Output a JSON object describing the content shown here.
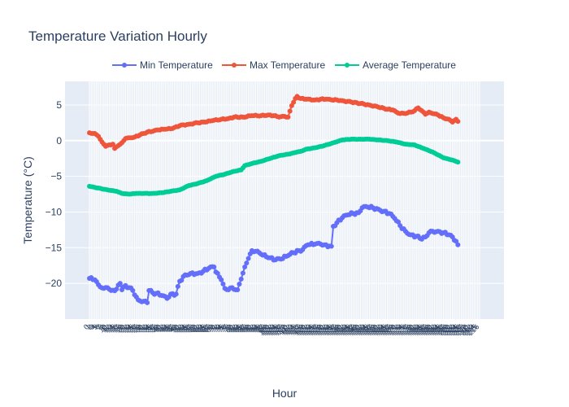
{
  "chart_data": {
    "type": "line",
    "title": "Temperature Variation Hourly",
    "xlabel": "Hour",
    "ylabel": "Temperature (°C)",
    "x_start_label": "0",
    "x_count": 217,
    "ylim": [
      -25,
      8.3
    ],
    "yticks": [
      5,
      0,
      -5,
      -10,
      -15,
      -20
    ],
    "grid": true,
    "legend_position": "top",
    "plot_bg": "#e5ecf6",
    "series": [
      {
        "name": "Min Temperature",
        "color": "#636efa",
        "anchors": [
          [
            0,
            -19.3
          ],
          [
            3,
            -19.5
          ],
          [
            5,
            -20.2
          ],
          [
            8,
            -20.7
          ],
          [
            10,
            -20.6
          ],
          [
            12,
            -21.0
          ],
          [
            15,
            -20.8
          ],
          [
            17,
            -20.0
          ],
          [
            18,
            -20.9
          ],
          [
            20,
            -20.3
          ],
          [
            22,
            -20.6
          ],
          [
            24,
            -21.0
          ],
          [
            25,
            -21.6
          ],
          [
            27,
            -22.3
          ],
          [
            30,
            -22.5
          ],
          [
            32,
            -22.7
          ],
          [
            33,
            -21.0
          ],
          [
            35,
            -21.3
          ],
          [
            37,
            -21.4
          ],
          [
            40,
            -21.7
          ],
          [
            43,
            -22.1
          ],
          [
            45,
            -21.5
          ],
          [
            48,
            -21.5
          ],
          [
            50,
            -19.7
          ],
          [
            53,
            -18.8
          ],
          [
            56,
            -18.6
          ],
          [
            60,
            -18.6
          ],
          [
            63,
            -18.3
          ],
          [
            66,
            -17.9
          ],
          [
            69,
            -17.7
          ],
          [
            70,
            -18.4
          ],
          [
            73,
            -19.5
          ],
          [
            75,
            -20.7
          ],
          [
            77,
            -20.9
          ],
          [
            79,
            -20.6
          ],
          [
            82,
            -20.9
          ],
          [
            84,
            -19.4
          ],
          [
            86,
            -17.7
          ],
          [
            88,
            -16.5
          ],
          [
            90,
            -15.4
          ],
          [
            92,
            -15.5
          ],
          [
            95,
            -15.9
          ],
          [
            99,
            -16.4
          ],
          [
            103,
            -16.7
          ],
          [
            106,
            -16.6
          ],
          [
            110,
            -16.1
          ],
          [
            113,
            -15.7
          ],
          [
            116,
            -15.4
          ],
          [
            117,
            -15.5
          ],
          [
            119,
            -14.9
          ],
          [
            121,
            -14.6
          ],
          [
            125,
            -14.5
          ],
          [
            128,
            -14.5
          ],
          [
            130,
            -14.6
          ],
          [
            134,
            -14.8
          ],
          [
            135,
            -12.0
          ],
          [
            137,
            -11.5
          ],
          [
            140,
            -10.8
          ],
          [
            143,
            -10.4
          ],
          [
            146,
            -10.2
          ],
          [
            149,
            -10.1
          ],
          [
            151,
            -9.4
          ],
          [
            154,
            -9.3
          ],
          [
            157,
            -9.4
          ],
          [
            160,
            -9.6
          ],
          [
            163,
            -9.9
          ],
          [
            166,
            -10.2
          ],
          [
            169,
            -10.9
          ],
          [
            172,
            -11.9
          ],
          [
            175,
            -12.7
          ],
          [
            178,
            -13.2
          ],
          [
            181,
            -13.4
          ],
          [
            183,
            -13.7
          ],
          [
            186,
            -13.5
          ],
          [
            188,
            -12.9
          ],
          [
            190,
            -12.7
          ],
          [
            193,
            -12.7
          ],
          [
            196,
            -12.9
          ],
          [
            199,
            -13.2
          ],
          [
            201,
            -13.5
          ],
          [
            203,
            -14.1
          ],
          [
            204,
            -14.6
          ]
        ]
      },
      {
        "name": "Max Temperature",
        "color": "#ef553b",
        "anchors": [
          [
            0,
            1.1
          ],
          [
            3,
            1.0
          ],
          [
            5,
            0.6
          ],
          [
            7,
            -0.2
          ],
          [
            9,
            -0.8
          ],
          [
            11,
            -0.6
          ],
          [
            13,
            -0.5
          ],
          [
            14,
            -1.1
          ],
          [
            16,
            -0.7
          ],
          [
            18,
            -0.3
          ],
          [
            20,
            0.3
          ],
          [
            22,
            0.4
          ],
          [
            25,
            0.5
          ],
          [
            28,
            0.8
          ],
          [
            32,
            1.2
          ],
          [
            35,
            1.3
          ],
          [
            38,
            1.5
          ],
          [
            42,
            1.6
          ],
          [
            46,
            1.7
          ],
          [
            50,
            2.1
          ],
          [
            55,
            2.3
          ],
          [
            60,
            2.5
          ],
          [
            64,
            2.6
          ],
          [
            68,
            2.8
          ],
          [
            73,
            3.0
          ],
          [
            77,
            3.1
          ],
          [
            80,
            3.3
          ],
          [
            85,
            3.3
          ],
          [
            90,
            3.5
          ],
          [
            95,
            3.5
          ],
          [
            99,
            3.6
          ],
          [
            102,
            3.5
          ],
          [
            105,
            3.3
          ],
          [
            108,
            3.4
          ],
          [
            110,
            3.3
          ],
          [
            112,
            4.9
          ],
          [
            114,
            5.9
          ],
          [
            115,
            6.2
          ],
          [
            117,
            5.9
          ],
          [
            120,
            5.8
          ],
          [
            125,
            5.7
          ],
          [
            128,
            5.8
          ],
          [
            131,
            5.8
          ],
          [
            134,
            5.7
          ],
          [
            137,
            5.7
          ],
          [
            140,
            5.6
          ],
          [
            145,
            5.4
          ],
          [
            150,
            5.2
          ],
          [
            155,
            5.0
          ],
          [
            160,
            4.7
          ],
          [
            165,
            4.4
          ],
          [
            168,
            4.3
          ],
          [
            170,
            4.0
          ],
          [
            172,
            3.8
          ],
          [
            175,
            3.8
          ],
          [
            178,
            4.0
          ],
          [
            180,
            4.2
          ],
          [
            182,
            4.6
          ],
          [
            184,
            4.2
          ],
          [
            186,
            3.7
          ],
          [
            188,
            4.0
          ],
          [
            190,
            3.8
          ],
          [
            193,
            3.6
          ],
          [
            196,
            3.2
          ],
          [
            199,
            3.0
          ],
          [
            201,
            2.6
          ],
          [
            203,
            3.0
          ],
          [
            204,
            2.7
          ]
        ]
      },
      {
        "name": "Average Temperature",
        "color": "#00cc96",
        "anchors": [
          [
            0,
            -6.4
          ],
          [
            10,
            -6.9
          ],
          [
            15,
            -7.1
          ],
          [
            18,
            -7.4
          ],
          [
            22,
            -7.5
          ],
          [
            26,
            -7.4
          ],
          [
            30,
            -7.4
          ],
          [
            35,
            -7.4
          ],
          [
            40,
            -7.3
          ],
          [
            45,
            -7.1
          ],
          [
            50,
            -6.9
          ],
          [
            55,
            -6.3
          ],
          [
            60,
            -6.0
          ],
          [
            65,
            -5.6
          ],
          [
            70,
            -5.0
          ],
          [
            75,
            -4.7
          ],
          [
            80,
            -4.3
          ],
          [
            84,
            -4.1
          ],
          [
            86,
            -3.5
          ],
          [
            90,
            -3.2
          ],
          [
            95,
            -2.9
          ],
          [
            100,
            -2.5
          ],
          [
            105,
            -2.1
          ],
          [
            110,
            -1.9
          ],
          [
            115,
            -1.6
          ],
          [
            117,
            -1.5
          ],
          [
            120,
            -1.2
          ],
          [
            125,
            -1.0
          ],
          [
            130,
            -0.7
          ],
          [
            135,
            -0.3
          ],
          [
            140,
            0.1
          ],
          [
            145,
            0.2
          ],
          [
            150,
            0.2
          ],
          [
            155,
            0.2
          ],
          [
            160,
            0.1
          ],
          [
            165,
            0.0
          ],
          [
            170,
            -0.2
          ],
          [
            175,
            -0.5
          ],
          [
            180,
            -0.6
          ],
          [
            185,
            -1.1
          ],
          [
            190,
            -1.6
          ],
          [
            193,
            -2.0
          ],
          [
            196,
            -2.4
          ],
          [
            199,
            -2.6
          ],
          [
            202,
            -2.8
          ],
          [
            204,
            -3.0
          ]
        ]
      }
    ]
  }
}
